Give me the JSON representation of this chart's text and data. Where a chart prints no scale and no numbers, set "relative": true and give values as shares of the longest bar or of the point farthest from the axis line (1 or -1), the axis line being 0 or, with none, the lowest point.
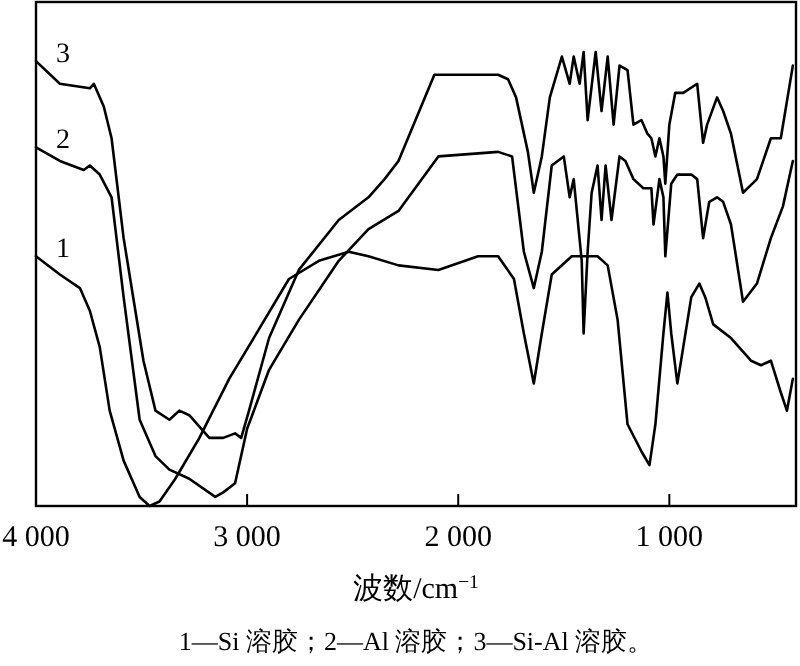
{
  "chart_data": {
    "type": "line",
    "relative": true,
    "xlabel": "波数/cm$^{−1}$",
    "annotations": [
      "1—Si 溶胶；2—Al 溶胶；3—Si-Al 溶胶。"
    ],
    "xlim": [
      4000,
      400
    ],
    "xticks": [
      {
        "value": 4000,
        "label": "4 000"
      },
      {
        "value": 3000,
        "label": "3 000"
      },
      {
        "value": 2000,
        "label": "2 000"
      },
      {
        "value": 1000,
        "label": "1 000"
      }
    ],
    "grid": false,
    "line_style": "solid",
    "series": [
      {
        "name": "3",
        "color": "#000000",
        "x": [
          4000,
          3887,
          3745,
          3726,
          3679,
          3642,
          3585,
          3491,
          3434,
          3368,
          3321,
          3274,
          3179,
          3113,
          3057,
          3028,
          2991,
          2896,
          2755,
          2566,
          2425,
          2349,
          2283,
          2113,
          1811,
          1764,
          1726,
          1670,
          1642,
          1604,
          1566,
          1509,
          1472,
          1453,
          1425,
          1406,
          1387,
          1349,
          1321,
          1292,
          1264,
          1236,
          1198,
          1170,
          1132,
          1104,
          1085,
          1066,
          1047,
          1028,
          1019,
          1000,
          972,
          934,
          868,
          840,
          821,
          774,
          745,
          708,
          651,
          585,
          519,
          472,
          415
        ],
        "values": [
          0.98,
          0.93,
          0.92,
          0.93,
          0.88,
          0.81,
          0.59,
          0.32,
          0.21,
          0.19,
          0.21,
          0.2,
          0.15,
          0.15,
          0.16,
          0.15,
          0.21,
          0.37,
          0.52,
          0.63,
          0.68,
          0.72,
          0.76,
          0.95,
          0.95,
          0.94,
          0.9,
          0.78,
          0.69,
          0.77,
          0.9,
          0.99,
          0.93,
          0.99,
          0.93,
          1.0,
          0.85,
          1.0,
          0.87,
          0.99,
          0.84,
          0.97,
          0.96,
          0.84,
          0.85,
          0.82,
          0.81,
          0.77,
          0.81,
          0.77,
          0.71,
          0.84,
          0.91,
          0.91,
          0.93,
          0.8,
          0.84,
          0.9,
          0.87,
          0.82,
          0.69,
          0.72,
          0.81,
          0.81,
          0.97
        ]
      },
      {
        "name": "2",
        "color": "#000000",
        "x": [
          4000,
          3887,
          3774,
          3745,
          3698,
          3642,
          3585,
          3509,
          3434,
          3368,
          3274,
          3151,
          3113,
          3057,
          3000,
          2896,
          2755,
          2566,
          2425,
          2283,
          2094,
          1811,
          1745,
          1689,
          1642,
          1604,
          1557,
          1500,
          1472,
          1453,
          1415,
          1406,
          1387,
          1368,
          1340,
          1321,
          1302,
          1274,
          1236,
          1208,
          1170,
          1123,
          1085,
          1075,
          1047,
          1028,
          1019,
          991,
          962,
          896,
          868,
          840,
          811,
          774,
          745,
          708,
          651,
          585,
          519,
          462,
          415
        ],
        "values": [
          0.79,
          0.76,
          0.74,
          0.75,
          0.73,
          0.68,
          0.46,
          0.19,
          0.11,
          0.08,
          0.06,
          0.02,
          0.03,
          0.05,
          0.17,
          0.3,
          0.41,
          0.54,
          0.61,
          0.65,
          0.77,
          0.78,
          0.77,
          0.56,
          0.48,
          0.56,
          0.75,
          0.77,
          0.68,
          0.72,
          0.54,
          0.38,
          0.56,
          0.69,
          0.75,
          0.63,
          0.75,
          0.63,
          0.77,
          0.76,
          0.72,
          0.7,
          0.7,
          0.62,
          0.72,
          0.68,
          0.55,
          0.71,
          0.73,
          0.73,
          0.72,
          0.59,
          0.67,
          0.68,
          0.67,
          0.62,
          0.45,
          0.49,
          0.59,
          0.66,
          0.76
        ]
      },
      {
        "name": "1",
        "color": "#000000",
        "x": [
          4000,
          3887,
          3792,
          3745,
          3698,
          3651,
          3585,
          3509,
          3462,
          3415,
          3340,
          3226,
          3085,
          2943,
          2802,
          2660,
          2519,
          2425,
          2283,
          2094,
          1906,
          1811,
          1736,
          1689,
          1642,
          1604,
          1557,
          1462,
          1340,
          1292,
          1245,
          1198,
          1132,
          1094,
          1066,
          1028,
          1009,
          991,
          962,
          934,
          896,
          858,
          830,
          792,
          708,
          613,
          566,
          519,
          472,
          443,
          415
        ],
        "values": [
          0.55,
          0.51,
          0.48,
          0.43,
          0.35,
          0.21,
          0.1,
          0.02,
          0.0,
          0.01,
          0.06,
          0.15,
          0.28,
          0.39,
          0.5,
          0.54,
          0.56,
          0.55,
          0.53,
          0.52,
          0.55,
          0.55,
          0.5,
          0.38,
          0.27,
          0.38,
          0.51,
          0.55,
          0.55,
          0.53,
          0.41,
          0.18,
          0.12,
          0.09,
          0.18,
          0.38,
          0.47,
          0.38,
          0.27,
          0.35,
          0.46,
          0.49,
          0.46,
          0.4,
          0.37,
          0.32,
          0.31,
          0.32,
          0.25,
          0.21,
          0.28
        ]
      }
    ]
  }
}
